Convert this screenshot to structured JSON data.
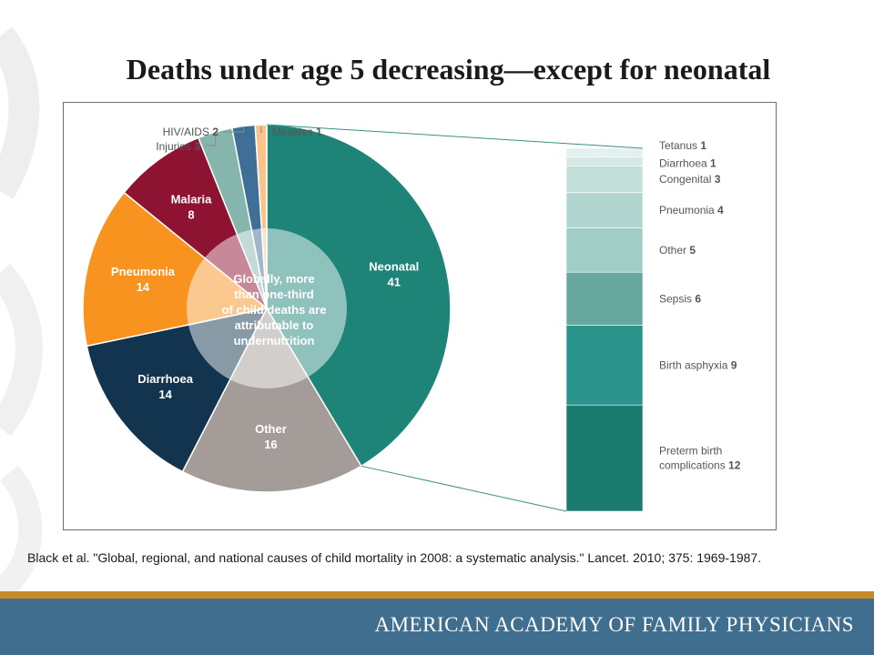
{
  "slide": {
    "title": "Deaths under age 5 decreasing—except for neonatal",
    "citation": "Black et al.  \"Global, regional, and national causes of child mortality in 2008: a systematic analysis.\"  Lancet. 2010; 375: 1969-1987.",
    "footer": "AMERICAN ACADEMY OF FAMILY PHYSICIANS",
    "colors": {
      "footer_bar": "#3f6e8e",
      "footer_line": "#c98a2b"
    }
  },
  "chart_data": [
    {
      "type": "pie",
      "title": "",
      "center_text": [
        "Globally, more",
        "than one-third",
        "of child deaths are",
        "attributable to",
        "undernutrition"
      ],
      "slices": [
        {
          "name": "Neonatal",
          "value": 41,
          "color": "#1f8478"
        },
        {
          "name": "Other",
          "value": 16,
          "color": "#a49c99"
        },
        {
          "name": "Diarrhoea",
          "value": 14,
          "color": "#13344e"
        },
        {
          "name": "Pneumonia",
          "value": 14,
          "color": "#f7931e"
        },
        {
          "name": "Malaria",
          "value": 8,
          "color": "#8e1333"
        },
        {
          "name": "Injuries",
          "value": 3,
          "color": "#86b5ad"
        },
        {
          "name": "HIV/AIDS",
          "value": 2,
          "color": "#3f6f97"
        },
        {
          "name": "Measles",
          "value": 1,
          "color": "#f9c38e"
        }
      ]
    },
    {
      "type": "bar",
      "stacked": true,
      "note": "breakdown of Neonatal slice",
      "segments": [
        {
          "name": "Tetanus",
          "value": 1,
          "color": "#e3f0ee"
        },
        {
          "name": "Diarrhoea",
          "value": 1,
          "color": "#d4e8e4"
        },
        {
          "name": "Congenital",
          "value": 3,
          "color": "#c2dfd9"
        },
        {
          "name": "Pneumonia",
          "value": 4,
          "color": "#b0d6cf"
        },
        {
          "name": "Other",
          "value": 5,
          "color": "#a0cec6"
        },
        {
          "name": "Sepsis",
          "value": 6,
          "color": "#66a89d"
        },
        {
          "name": "Birth asphyxia",
          "value": 9,
          "color": "#2b948a"
        },
        {
          "name": "Preterm birth complications",
          "value": 12,
          "color": "#1c7b6f"
        }
      ]
    }
  ]
}
